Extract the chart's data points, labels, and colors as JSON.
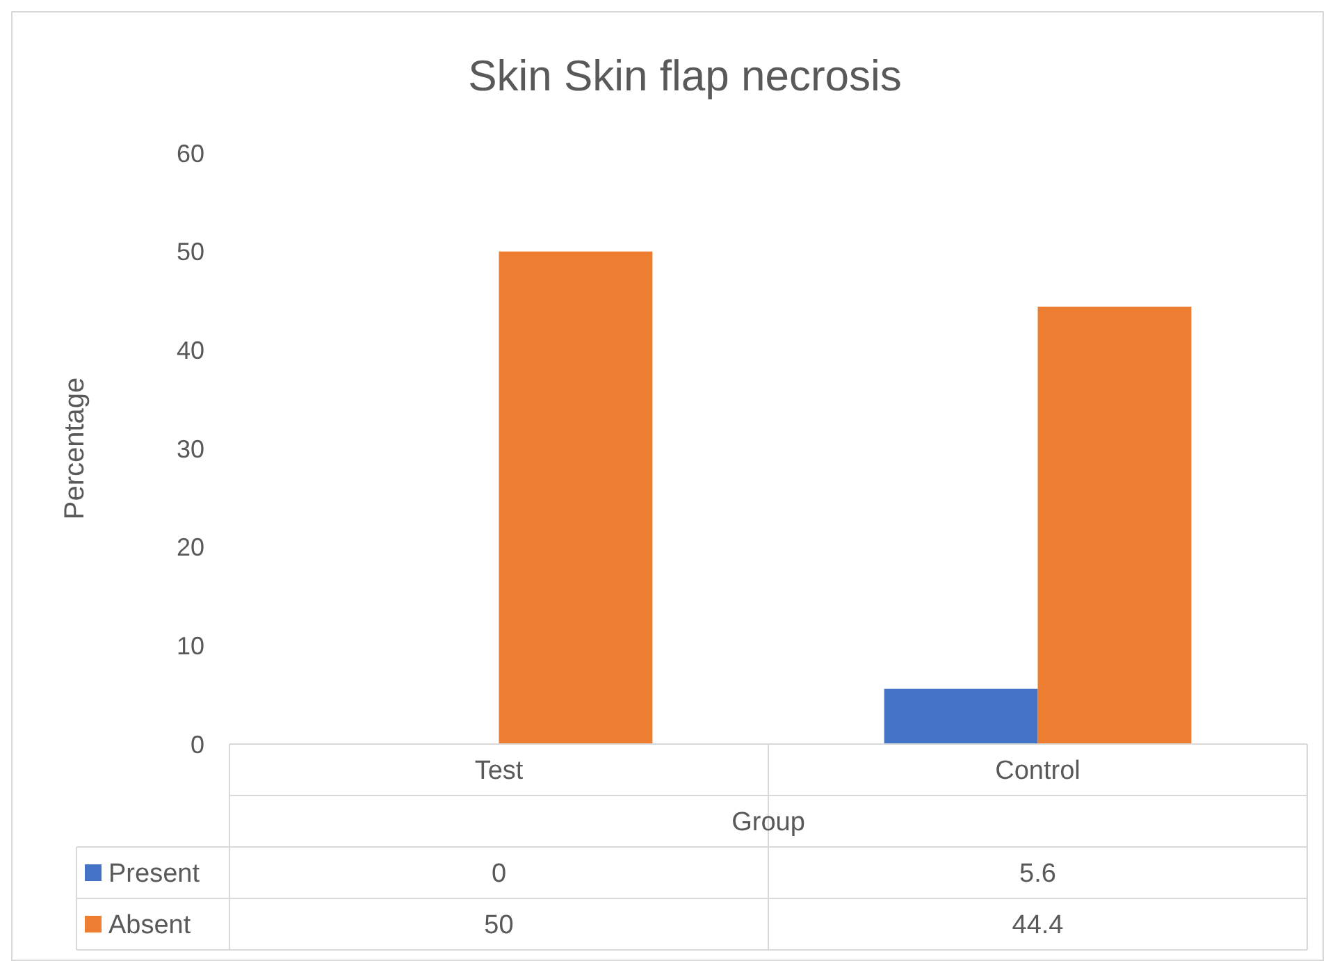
{
  "chart_data": {
    "type": "bar",
    "title": "Skin Skin flap necrosis",
    "xlabel": "Group",
    "ylabel": "Percentage",
    "categories": [
      "Test",
      "Control"
    ],
    "series": [
      {
        "name": "Present",
        "color": "#4472c4",
        "values": [
          0,
          5.6
        ]
      },
      {
        "name": "Absent",
        "color": "#ed7d31",
        "values": [
          50,
          44.4
        ]
      }
    ],
    "ylim": [
      0,
      60
    ],
    "yticks": [
      0,
      10,
      20,
      30,
      40,
      50,
      60
    ],
    "grid": false,
    "legend": "bottom",
    "data_labels": true
  }
}
